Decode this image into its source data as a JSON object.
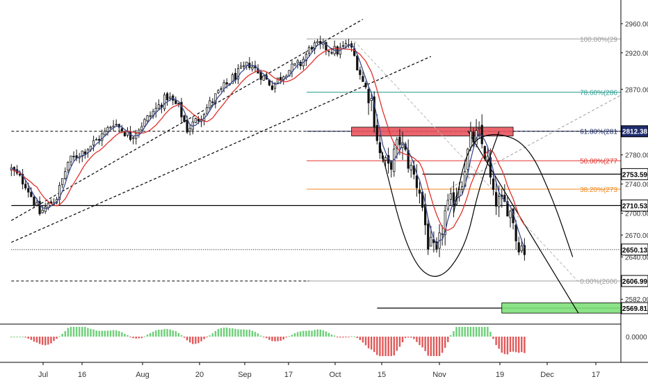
{
  "chart_data": {
    "type": "candlestick",
    "title": "",
    "xlabel": "",
    "ylabel": "",
    "price_axis": {
      "ticks": [
        2960,
        2920,
        2870,
        2780,
        2740,
        2700,
        2670,
        2640,
        2582
      ],
      "tick_labels": [
        "2960.00",
        "2920.00",
        "2870.00",
        "2780.00",
        "2740.00",
        "2700.00",
        "2670.00",
        "2640.00",
        "2582.00"
      ],
      "range": [
        2556,
        2976
      ]
    },
    "time_axis": {
      "labels": [
        "Jul",
        "16",
        "Aug",
        "20",
        "Sep",
        "17",
        "Oct",
        "15",
        "Nov",
        "19",
        "Dec",
        "17"
      ]
    },
    "price_labels": [
      {
        "label": "2812.38",
        "value": 2812.38,
        "color": "#1f2d6e",
        "text_color": "#ffffff"
      },
      {
        "label": "2753.59",
        "value": 2753.59,
        "color": "#ffffff",
        "text_color": "#000000"
      },
      {
        "label": "2710.53",
        "value": 2710.53,
        "color": "#ffffff",
        "text_color": "#000000"
      },
      {
        "label": "2650.13",
        "value": 2650.13,
        "color": "#ffffff",
        "text_color": "#000000"
      },
      {
        "label": "2606.99",
        "value": 2606.99,
        "color": "#ffffff",
        "text_color": "#000000"
      },
      {
        "label": "2569.81",
        "value": 2569.81,
        "color": "#ffffff",
        "text_color": "#000000"
      }
    ],
    "fibonacci_levels": [
      {
        "label": "100.00%(29",
        "value": 2939,
        "color": "#9e9e9e"
      },
      {
        "label": "78.60%(286",
        "value": 2866,
        "color": "#2a9d8f"
      },
      {
        "label": "61.80%(281",
        "value": 2812.38,
        "color": "#1f2d6e"
      },
      {
        "label": "50.00%(277",
        "value": 2772,
        "color": "#e0312b"
      },
      {
        "label": "38.20%(273",
        "value": 2733,
        "color": "#f08a24"
      },
      {
        "label": "0.00%(2606",
        "value": 2606.99,
        "color": "#9e9e9e"
      }
    ],
    "horizontal_lines": [
      {
        "value": 2812.38,
        "style": "dashed",
        "color": "#000000",
        "from_day": 0,
        "to_day": 215
      },
      {
        "value": 2753.59,
        "style": "solid",
        "color": "#000000",
        "from_day": 145,
        "to_day": 215
      },
      {
        "value": 2710.53,
        "style": "solid",
        "color": "#000000",
        "from_day": 0,
        "to_day": 215
      },
      {
        "value": 2650.13,
        "style": "dotted",
        "color": "#000000",
        "from_day": 0,
        "to_day": 215
      },
      {
        "value": 2606.99,
        "style": "dashed",
        "color": "#000000",
        "from_day": 0,
        "to_day": 105
      },
      {
        "value": 2569.81,
        "style": "solid",
        "color": "#000000",
        "from_day": 129,
        "to_day": 215
      }
    ],
    "zones": [
      {
        "name": "resistance",
        "from_day": 120,
        "to_day": 177,
        "low": 2806,
        "high": 2818,
        "color": "#e8545d"
      },
      {
        "name": "target",
        "from_day": 173,
        "to_day": 215,
        "low": 2563,
        "high": 2577,
        "color": "#7fe07a"
      }
    ],
    "channel_lines": [
      {
        "from": [
          0,
          2690
        ],
        "to": [
          124,
          2966
        ]
      },
      {
        "from": [
          0,
          2660
        ],
        "to": [
          148,
          2915
        ]
      }
    ],
    "trend_line": {
      "from": [
        161,
        2813
      ],
      "to": [
        200,
        2563
      ]
    },
    "gray_dashed_line": {
      "from": [
        155,
        2735
      ],
      "to": [
        215,
        2862
      ]
    },
    "gray_diagonal_line": {
      "from": [
        121,
        2936
      ],
      "to": [
        200,
        2606
      ]
    },
    "curves": [
      {
        "name": "rounding-bottom",
        "points": [
          [
            130,
            2793
          ],
          [
            140,
            2640
          ],
          [
            150,
            2603
          ],
          [
            160,
            2650
          ],
          [
            165,
            2736
          ],
          [
            172,
            2812
          ]
        ]
      },
      {
        "name": "rounding-top",
        "points": [
          [
            156,
            2700
          ],
          [
            161,
            2795
          ],
          [
            170,
            2812
          ],
          [
            182,
            2796
          ],
          [
            191,
            2720
          ],
          [
            198,
            2640
          ]
        ]
      }
    ],
    "series": [
      {
        "name": "",
        "type": "candles",
        "anchors": [
          [
            0,
            2760
          ],
          [
            5,
            2740
          ],
          [
            10,
            2700
          ],
          [
            16,
            2722
          ],
          [
            20,
            2770
          ],
          [
            27,
            2790
          ],
          [
            33,
            2810
          ],
          [
            36,
            2825
          ],
          [
            42,
            2805
          ],
          [
            48,
            2830
          ],
          [
            55,
            2860
          ],
          [
            59,
            2845
          ],
          [
            62,
            2815
          ],
          [
            66,
            2830
          ],
          [
            72,
            2860
          ],
          [
            78,
            2885
          ],
          [
            84,
            2905
          ],
          [
            88,
            2890
          ],
          [
            92,
            2875
          ],
          [
            97,
            2895
          ],
          [
            102,
            2905
          ],
          [
            106,
            2930
          ],
          [
            110,
            2928
          ],
          [
            115,
            2922
          ],
          [
            119,
            2932
          ],
          [
            121,
            2915
          ],
          [
            124,
            2880
          ],
          [
            127,
            2855
          ],
          [
            130,
            2780
          ],
          [
            133,
            2760
          ],
          [
            137,
            2800
          ],
          [
            141,
            2760
          ],
          [
            144,
            2732
          ],
          [
            147,
            2660
          ],
          [
            150,
            2640
          ],
          [
            153,
            2700
          ],
          [
            156,
            2720
          ],
          [
            159,
            2748
          ],
          [
            162,
            2800
          ],
          [
            165,
            2806
          ],
          [
            168,
            2770
          ],
          [
            170,
            2720
          ],
          [
            173,
            2712
          ],
          [
            175,
            2710
          ],
          [
            177,
            2693
          ],
          [
            178,
            2665
          ],
          [
            181,
            2650
          ]
        ]
      },
      {
        "name": "",
        "type": "moving-average",
        "color": "#e0312b"
      },
      {
        "name": "",
        "type": "moving-average",
        "color": "#3b4a8f"
      }
    ],
    "oscillator": {
      "ticks": [
        0
      ],
      "tick_labels": [
        "0.0000"
      ],
      "positive_color": "#6fcf7a",
      "negative_color": "#e05a5a"
    },
    "grid": false,
    "legend": "none"
  }
}
